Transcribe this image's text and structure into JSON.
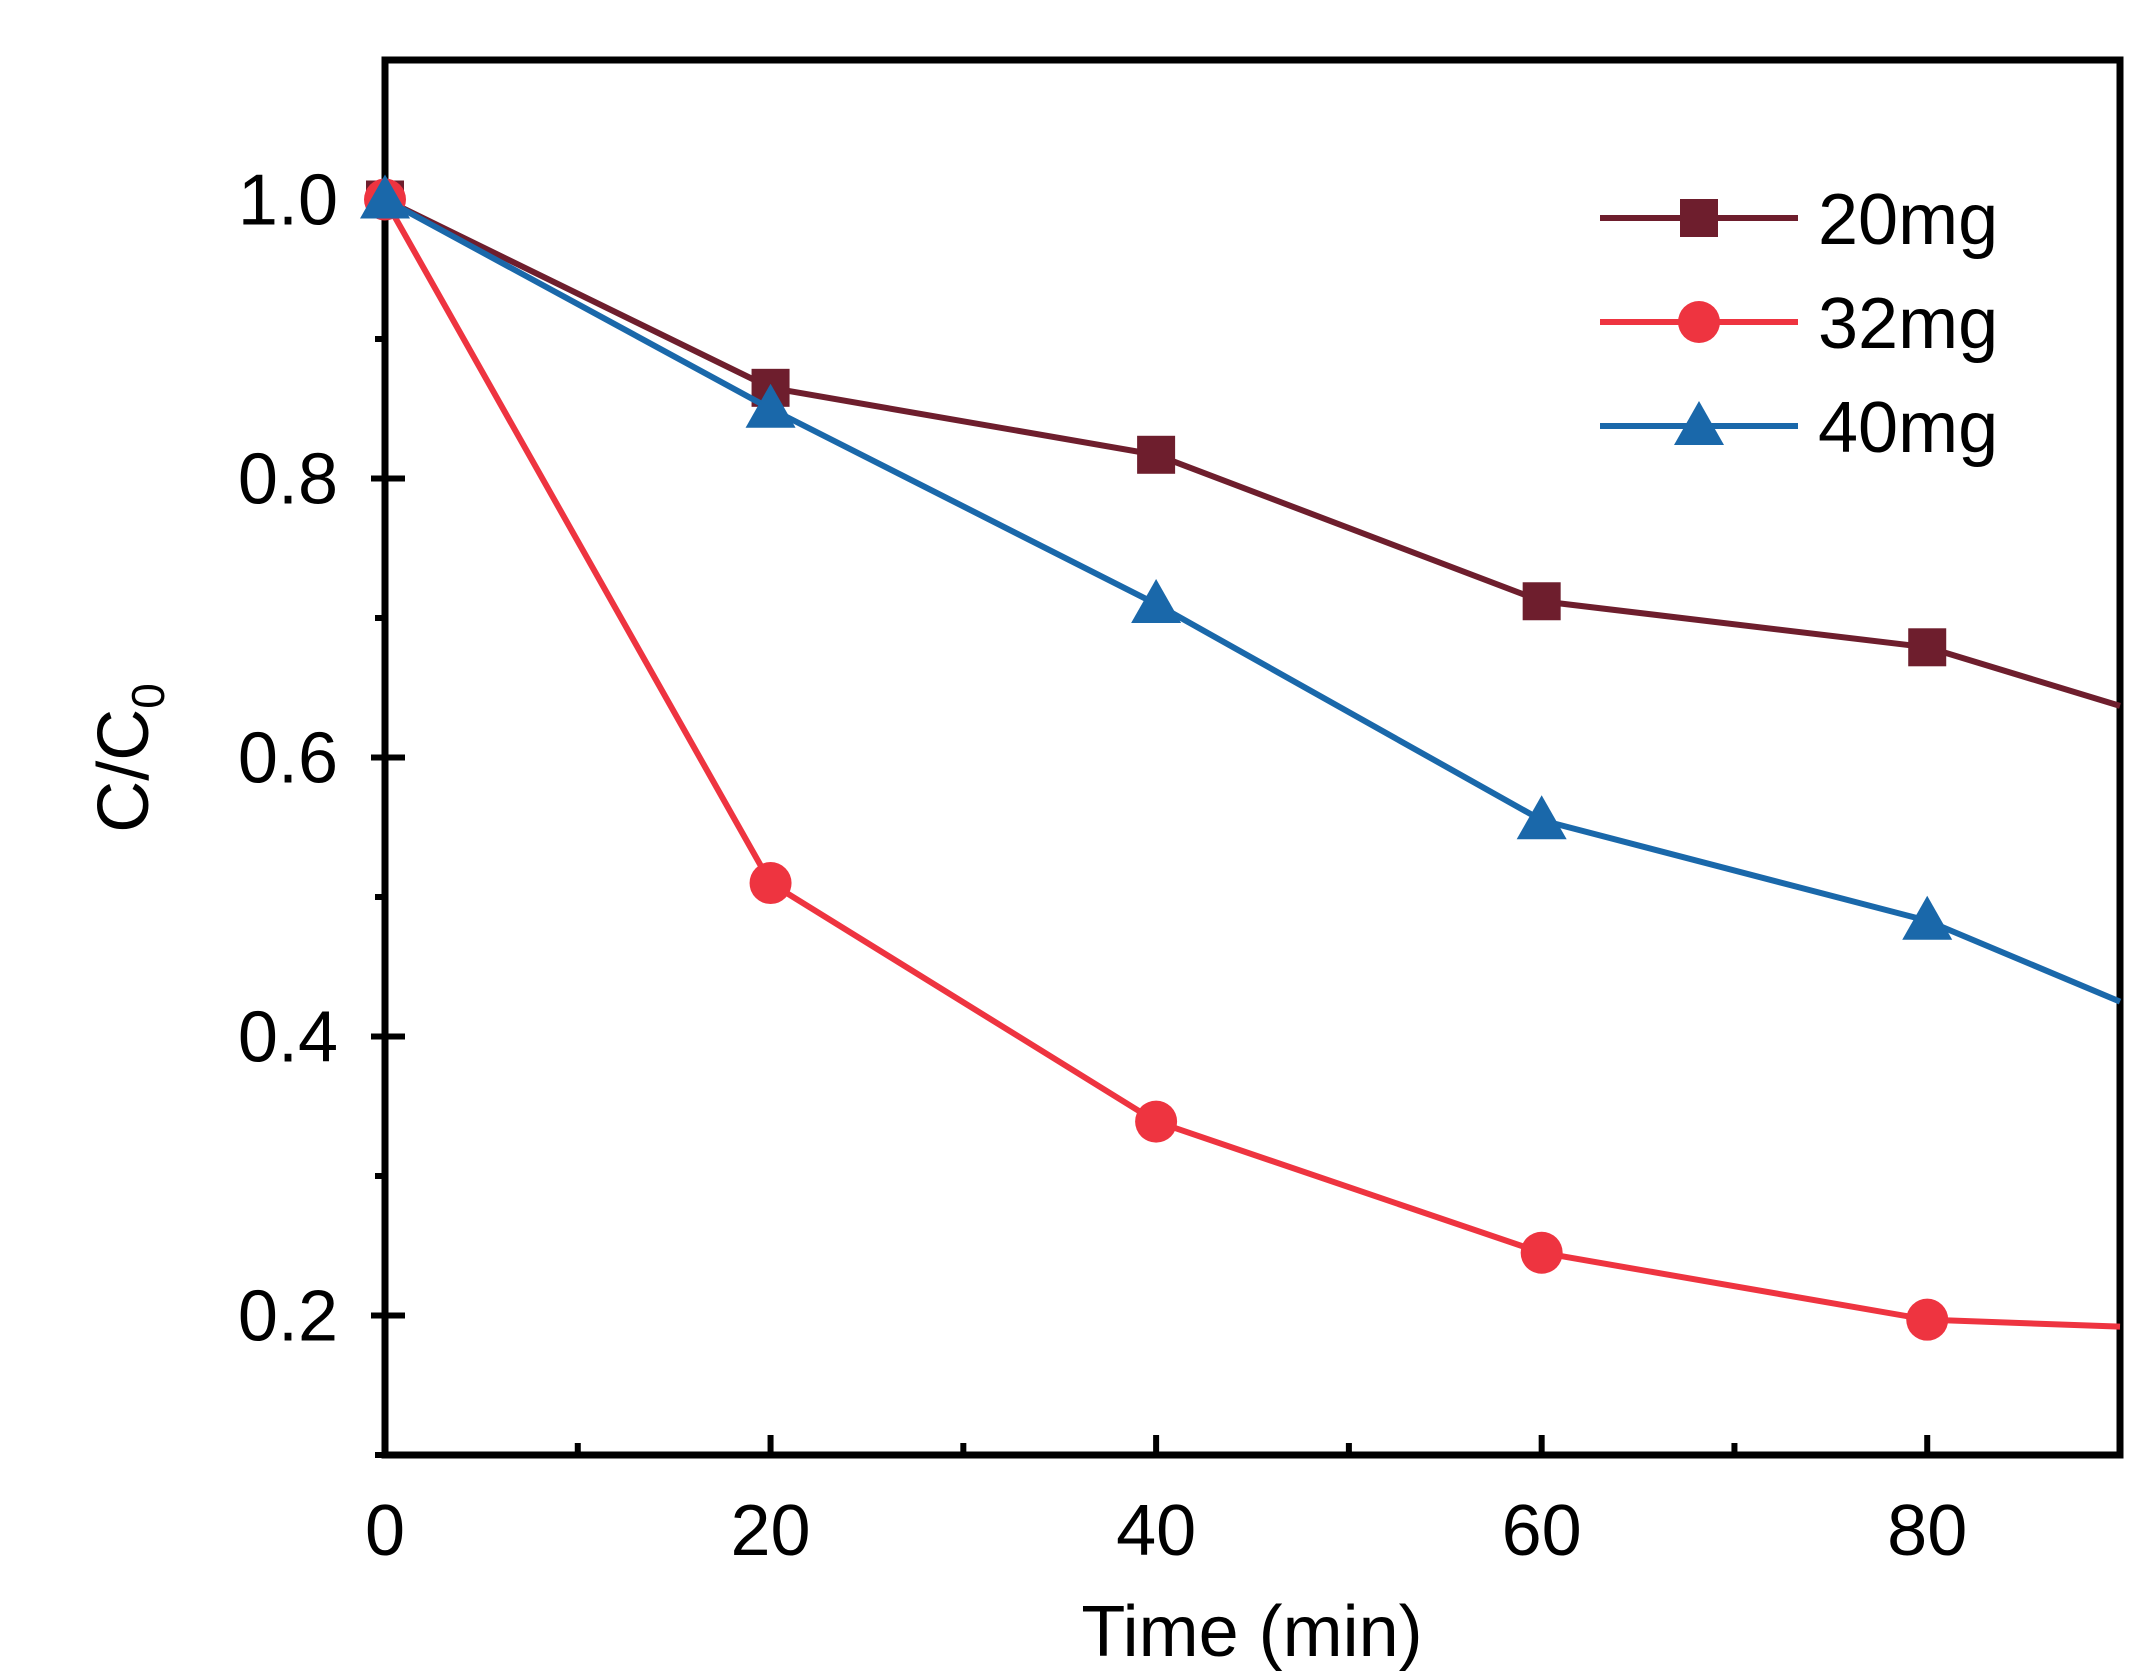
{
  "chart_data": {
    "type": "line",
    "title": "",
    "xlabel": "Time (min)",
    "ylabel": "C/C",
    "ylabel_subscript": "0",
    "xlim": [
      0,
      90
    ],
    "ylim": [
      0.1,
      1.1
    ],
    "x_ticks": [
      0,
      20,
      40,
      60,
      80
    ],
    "x_minor_ticks": [
      10,
      30,
      50,
      70,
      90
    ],
    "y_ticks": [
      "0.2",
      "0.4",
      "0.6",
      "0.8",
      "1.0"
    ],
    "y_minor_ticks": [
      0.1,
      0.3,
      0.5,
      0.7,
      0.9
    ],
    "legend_position": "top-right",
    "series": [
      {
        "name": "20mg",
        "color": "#6E1E2D",
        "marker": "square",
        "x": [
          0,
          20,
          40,
          60,
          80
        ],
        "values": [
          1.0,
          0.865,
          0.817,
          0.712,
          0.679
        ],
        "line_end": [
          90,
          0.637
        ]
      },
      {
        "name": "32mg",
        "color": "#EE3440",
        "marker": "circle",
        "x": [
          0,
          20,
          40,
          60,
          80
        ],
        "values": [
          1.0,
          0.51,
          0.339,
          0.245,
          0.197
        ],
        "line_end": [
          90,
          0.192
        ]
      },
      {
        "name": "40mg",
        "color": "#1A68AA",
        "marker": "triangle",
        "x": [
          0,
          20,
          40,
          60,
          80
        ],
        "values": [
          1.0,
          0.85,
          0.71,
          0.555,
          0.483
        ],
        "line_end": [
          90,
          0.425
        ]
      }
    ]
  }
}
